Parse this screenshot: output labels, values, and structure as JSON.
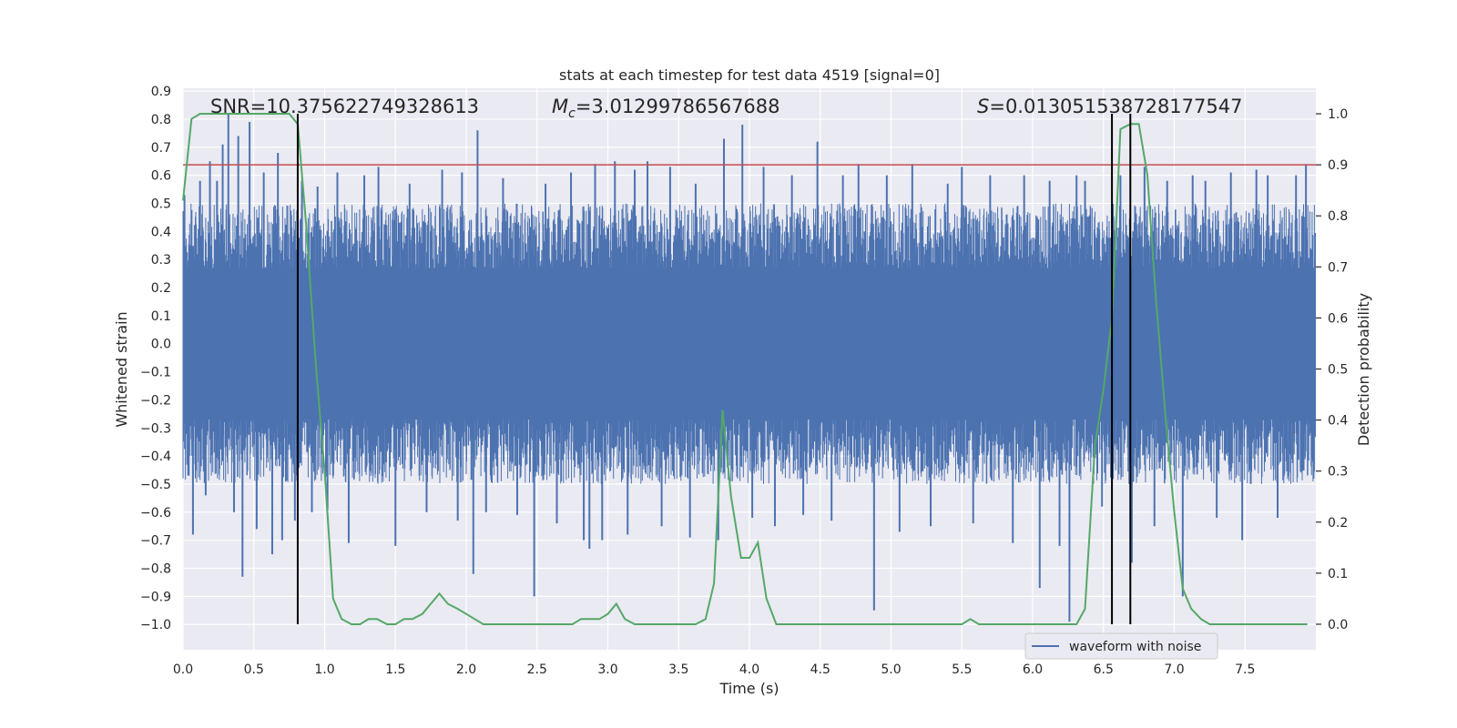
{
  "chart_data": {
    "type": "line",
    "title": "stats at each timestep for test data 4519 [signal=0]",
    "xlabel": "Time (s)",
    "ylabel_left": "Whitened strain",
    "ylabel_right": "Detection probability",
    "xlim": [
      0,
      8
    ],
    "ylim_left": [
      -1.09,
      0.91
    ],
    "ylim_right": [
      -0.05,
      1.05
    ],
    "x_ticks": [
      "0.0",
      "0.5",
      "1.0",
      "1.5",
      "2.0",
      "2.5",
      "3.0",
      "3.5",
      "4.0",
      "4.5",
      "5.0",
      "5.5",
      "6.0",
      "6.5",
      "7.0",
      "7.5"
    ],
    "y_ticks_left": [
      "0.9",
      "0.8",
      "0.7",
      "0.6",
      "0.5",
      "0.4",
      "0.3",
      "0.2",
      "0.1",
      "0.0",
      "−0.1",
      "−0.2",
      "−0.3",
      "−0.4",
      "−0.5",
      "−0.6",
      "−0.7",
      "−0.8",
      "−0.9",
      "−1.0"
    ],
    "y_ticks_right": [
      "0.0",
      "0.1",
      "0.2",
      "0.3",
      "0.4",
      "0.5",
      "0.6",
      "0.7",
      "0.8",
      "0.9",
      "1.0"
    ],
    "grid": true,
    "legend_placement": "bottom-right",
    "annotations": {
      "snr": "SNR=10.375622749328613",
      "mc_symbol": "M",
      "mc_sub": "c",
      "mc_value": "=3.01299786567688",
      "s_symbol": "S",
      "s_value": "=0.013051538728177547"
    },
    "threshold": {
      "value": 0.9,
      "axis": "right",
      "color": "#c44e52"
    },
    "vertical_lines": [
      0.81,
      6.56,
      6.69
    ],
    "series": [
      {
        "name": "waveform with noise",
        "axis": "left",
        "color": "#4c72b0",
        "style": "dense noise, mostly within ±0.27 with spikes",
        "spikes": [
          {
            "x": 0.01,
            "y": 0.53
          },
          {
            "x": 0.04,
            "y": -0.47
          },
          {
            "x": 0.07,
            "y": -0.68
          },
          {
            "x": 0.12,
            "y": 0.58
          },
          {
            "x": 0.16,
            "y": -0.54
          },
          {
            "x": 0.19,
            "y": 0.65
          },
          {
            "x": 0.24,
            "y": 0.58
          },
          {
            "x": 0.28,
            "y": 0.71
          },
          {
            "x": 0.32,
            "y": 0.82
          },
          {
            "x": 0.36,
            "y": -0.6
          },
          {
            "x": 0.39,
            "y": 0.74
          },
          {
            "x": 0.42,
            "y": -0.83
          },
          {
            "x": 0.47,
            "y": 0.79
          },
          {
            "x": 0.52,
            "y": -0.66
          },
          {
            "x": 0.57,
            "y": 0.61
          },
          {
            "x": 0.63,
            "y": -0.75
          },
          {
            "x": 0.67,
            "y": 0.68
          },
          {
            "x": 0.7,
            "y": -0.7
          },
          {
            "x": 0.79,
            "y": -0.63
          },
          {
            "x": 0.84,
            "y": 0.58
          },
          {
            "x": 0.91,
            "y": -0.6
          },
          {
            "x": 0.95,
            "y": 0.56
          },
          {
            "x": 1.02,
            "y": -0.59
          },
          {
            "x": 1.09,
            "y": 0.61
          },
          {
            "x": 1.17,
            "y": -0.71
          },
          {
            "x": 1.28,
            "y": 0.6
          },
          {
            "x": 1.38,
            "y": 0.63
          },
          {
            "x": 1.5,
            "y": -0.72
          },
          {
            "x": 1.6,
            "y": 0.57
          },
          {
            "x": 1.72,
            "y": -0.6
          },
          {
            "x": 1.83,
            "y": 0.62
          },
          {
            "x": 1.94,
            "y": -0.63
          },
          {
            "x": 1.97,
            "y": 0.61
          },
          {
            "x": 2.05,
            "y": -0.82
          },
          {
            "x": 2.08,
            "y": 0.76
          },
          {
            "x": 2.14,
            "y": -0.6
          },
          {
            "x": 2.26,
            "y": 0.59
          },
          {
            "x": 2.36,
            "y": -0.61
          },
          {
            "x": 2.48,
            "y": -0.9
          },
          {
            "x": 2.56,
            "y": 0.57
          },
          {
            "x": 2.64,
            "y": -0.64
          },
          {
            "x": 2.74,
            "y": 0.61
          },
          {
            "x": 2.83,
            "y": -0.7
          },
          {
            "x": 2.87,
            "y": -0.73
          },
          {
            "x": 2.91,
            "y": 0.64
          },
          {
            "x": 2.96,
            "y": -0.7
          },
          {
            "x": 3.05,
            "y": 0.65
          },
          {
            "x": 3.14,
            "y": -0.68
          },
          {
            "x": 3.19,
            "y": 0.62
          },
          {
            "x": 3.28,
            "y": 0.65
          },
          {
            "x": 3.38,
            "y": -0.65
          },
          {
            "x": 3.44,
            "y": 0.63
          },
          {
            "x": 3.58,
            "y": -0.69
          },
          {
            "x": 3.62,
            "y": 0.57
          },
          {
            "x": 3.78,
            "y": -0.7
          },
          {
            "x": 3.82,
            "y": 0.73
          },
          {
            "x": 3.88,
            "y": -0.24
          },
          {
            "x": 3.95,
            "y": 0.78
          },
          {
            "x": 4.02,
            "y": -0.62
          },
          {
            "x": 4.1,
            "y": 0.63
          },
          {
            "x": 4.18,
            "y": -0.65
          },
          {
            "x": 4.3,
            "y": 0.6
          },
          {
            "x": 4.38,
            "y": -0.61
          },
          {
            "x": 4.48,
            "y": 0.72
          },
          {
            "x": 4.58,
            "y": -0.63
          },
          {
            "x": 4.66,
            "y": 0.6
          },
          {
            "x": 4.77,
            "y": 0.64
          },
          {
            "x": 4.88,
            "y": -0.95
          },
          {
            "x": 4.97,
            "y": 0.6
          },
          {
            "x": 5.06,
            "y": -0.67
          },
          {
            "x": 5.15,
            "y": 0.64
          },
          {
            "x": 5.28,
            "y": -0.65
          },
          {
            "x": 5.4,
            "y": 0.57
          },
          {
            "x": 5.5,
            "y": 0.63
          },
          {
            "x": 5.58,
            "y": -0.64
          },
          {
            "x": 5.7,
            "y": 0.6
          },
          {
            "x": 5.86,
            "y": -0.71
          },
          {
            "x": 5.94,
            "y": 0.6
          },
          {
            "x": 6.05,
            "y": -0.87
          },
          {
            "x": 6.12,
            "y": 0.58
          },
          {
            "x": 6.19,
            "y": -0.72
          },
          {
            "x": 6.26,
            "y": -0.99
          },
          {
            "x": 6.31,
            "y": 0.6
          },
          {
            "x": 6.37,
            "y": 0.58
          },
          {
            "x": 6.49,
            "y": -0.58
          },
          {
            "x": 6.62,
            "y": 0.6
          },
          {
            "x": 6.7,
            "y": -0.78
          },
          {
            "x": 6.79,
            "y": 0.63
          },
          {
            "x": 6.86,
            "y": -0.65
          },
          {
            "x": 6.95,
            "y": 0.58
          },
          {
            "x": 7.06,
            "y": -0.9
          },
          {
            "x": 7.13,
            "y": 0.6
          },
          {
            "x": 7.22,
            "y": 0.58
          },
          {
            "x": 7.3,
            "y": -0.62
          },
          {
            "x": 7.4,
            "y": 0.61
          },
          {
            "x": 7.48,
            "y": -0.7
          },
          {
            "x": 7.58,
            "y": 0.62
          },
          {
            "x": 7.66,
            "y": 0.6
          },
          {
            "x": 7.73,
            "y": -0.62
          },
          {
            "x": 7.86,
            "y": 0.6
          },
          {
            "x": 7.93,
            "y": 0.64
          },
          {
            "x": 7.98,
            "y": -0.42
          }
        ]
      },
      {
        "name": "",
        "axis": "right",
        "color": "#55a868",
        "x": [
          0.0,
          0.06,
          0.12,
          0.19,
          0.25,
          0.31,
          0.37,
          0.44,
          0.5,
          0.56,
          0.62,
          0.69,
          0.75,
          0.81,
          0.87,
          0.94,
          1.0,
          1.06,
          1.12,
          1.19,
          1.25,
          1.31,
          1.37,
          1.44,
          1.5,
          1.56,
          1.62,
          1.69,
          1.75,
          1.81,
          1.87,
          1.94,
          2.0,
          2.06,
          2.12,
          2.19,
          2.25,
          2.31,
          2.37,
          2.44,
          2.5,
          2.56,
          2.62,
          2.69,
          2.75,
          2.81,
          2.87,
          2.94,
          3.0,
          3.06,
          3.12,
          3.19,
          3.25,
          3.31,
          3.37,
          3.44,
          3.5,
          3.56,
          3.62,
          3.69,
          3.75,
          3.81,
          3.87,
          3.94,
          4.0,
          4.06,
          4.12,
          4.19,
          4.25,
          4.31,
          4.37,
          4.44,
          4.5,
          4.56,
          4.62,
          4.69,
          4.75,
          4.81,
          4.87,
          4.94,
          5.0,
          5.06,
          5.12,
          5.19,
          5.25,
          5.31,
          5.37,
          5.44,
          5.5,
          5.56,
          5.62,
          5.69,
          5.75,
          5.81,
          5.87,
          5.94,
          6.0,
          6.06,
          6.12,
          6.19,
          6.25,
          6.31,
          6.37,
          6.44,
          6.5,
          6.56,
          6.62,
          6.69,
          6.75,
          6.81,
          6.87,
          6.94,
          7.0,
          7.06,
          7.12,
          7.19,
          7.25,
          7.31,
          7.37,
          7.44,
          7.5,
          7.56,
          7.62,
          7.69,
          7.75,
          7.81,
          7.87,
          7.94
        ],
        "values": [
          0.83,
          0.99,
          1.0,
          1.0,
          1.0,
          1.0,
          1.0,
          1.0,
          1.0,
          1.0,
          1.0,
          1.0,
          1.0,
          0.98,
          0.78,
          0.5,
          0.3,
          0.05,
          0.01,
          0.0,
          0.0,
          0.01,
          0.01,
          0.0,
          0.0,
          0.01,
          0.01,
          0.02,
          0.04,
          0.06,
          0.04,
          0.03,
          0.02,
          0.01,
          0.0,
          0.0,
          0.0,
          0.0,
          0.0,
          0.0,
          0.0,
          0.0,
          0.0,
          0.0,
          0.0,
          0.01,
          0.01,
          0.01,
          0.02,
          0.04,
          0.01,
          0.0,
          0.0,
          0.0,
          0.0,
          0.0,
          0.0,
          0.0,
          0.0,
          0.01,
          0.08,
          0.42,
          0.25,
          0.13,
          0.13,
          0.16,
          0.05,
          0.0,
          0.0,
          0.0,
          0.0,
          0.0,
          0.0,
          0.0,
          0.0,
          0.0,
          0.0,
          0.0,
          0.0,
          0.0,
          0.0,
          0.0,
          0.0,
          0.0,
          0.0,
          0.0,
          0.0,
          0.0,
          0.0,
          0.01,
          0.0,
          0.0,
          0.0,
          0.0,
          0.0,
          0.0,
          0.0,
          0.0,
          0.0,
          0.0,
          0.0,
          0.0,
          0.03,
          0.35,
          0.46,
          0.6,
          0.97,
          0.98,
          0.98,
          0.88,
          0.64,
          0.4,
          0.22,
          0.07,
          0.03,
          0.01,
          0.0,
          0.0,
          0.0,
          0.0,
          0.0,
          0.0,
          0.0,
          0.0,
          0.0,
          0.0,
          0.0,
          0.0
        ]
      }
    ]
  }
}
